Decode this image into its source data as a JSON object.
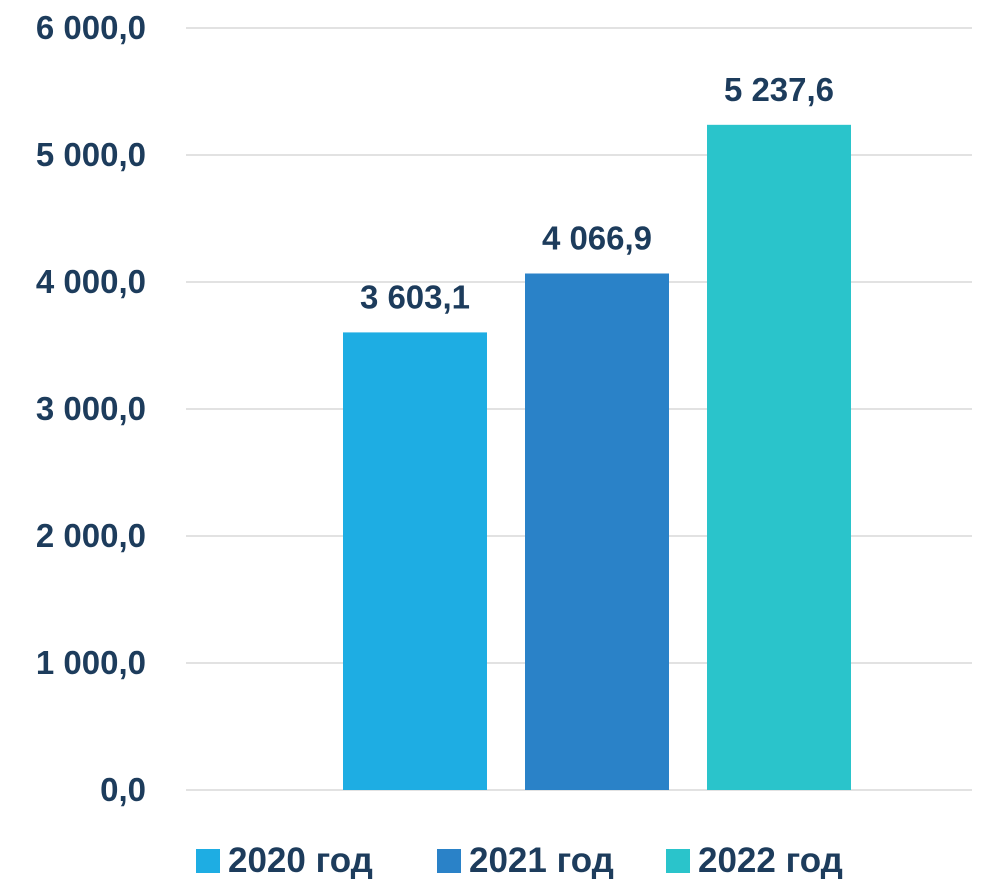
{
  "chart_data": {
    "type": "bar",
    "categories": [
      "2020 год",
      "2021 год",
      "2022 год"
    ],
    "values": [
      3603.1,
      4066.9,
      5237.6
    ],
    "value_labels": [
      "3 603,1",
      "4 066,9",
      "5 237,6"
    ],
    "ylim": [
      0,
      6000
    ],
    "yticks": [
      {
        "value": 0,
        "label": "0,0"
      },
      {
        "value": 1000,
        "label": "1 000,0"
      },
      {
        "value": 2000,
        "label": "2 000,0"
      },
      {
        "value": 3000,
        "label": "3 000,0"
      },
      {
        "value": 4000,
        "label": "4 000,0"
      },
      {
        "value": 5000,
        "label": "5 000,0"
      },
      {
        "value": 6000,
        "label": "6 000,0"
      }
    ],
    "colors": [
      "#1EADE3",
      "#2A82C8",
      "#2AC4CB"
    ],
    "text_color": "#1D3C5C",
    "grid": true,
    "legend_position": "bottom"
  }
}
